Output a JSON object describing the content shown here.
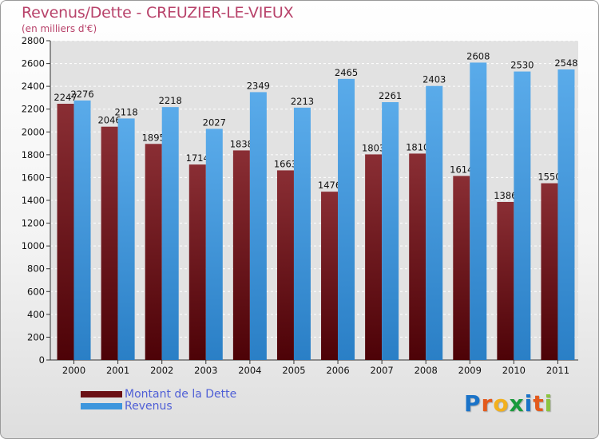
{
  "title": "Revenus/Dette - CREUZIER-LE-VIEUX",
  "subtitle": "(en milliers d'€)",
  "legend": [
    {
      "label": "Montant de la Dette",
      "color": "#6b1014"
    },
    {
      "label": "Revenus",
      "color": "#3d96dd"
    }
  ],
  "logo": {
    "letters": [
      "P",
      "r",
      "o",
      "x",
      "i",
      "t",
      "i"
    ],
    "colors": [
      "#1a73c8",
      "#e35a1c",
      "#f2b01e",
      "#1a9a3c",
      "#1a73c8",
      "#e35a1c",
      "#8bc43f"
    ]
  },
  "chart_data": {
    "type": "bar",
    "categories": [
      "2000",
      "2001",
      "2002",
      "2003",
      "2004",
      "2005",
      "2006",
      "2007",
      "2008",
      "2009",
      "2010",
      "2011"
    ],
    "series": [
      {
        "name": "Montant de la Dette",
        "values": [
          2247,
          2046,
          1895,
          1714,
          1838,
          1663,
          1476,
          1803,
          1810,
          1614,
          1386,
          1550
        ],
        "color": "#6b1014"
      },
      {
        "name": "Revenus",
        "values": [
          2276,
          2118,
          2218,
          2027,
          2349,
          2213,
          2465,
          2261,
          2403,
          2608,
          2530,
          2548
        ],
        "color": "#3d96dd"
      }
    ],
    "ylim": [
      0,
      2800
    ],
    "yticks": [
      0,
      200,
      400,
      600,
      800,
      1000,
      1200,
      1400,
      1600,
      1800,
      2000,
      2200,
      2400,
      2600,
      2800
    ],
    "grid": true
  }
}
